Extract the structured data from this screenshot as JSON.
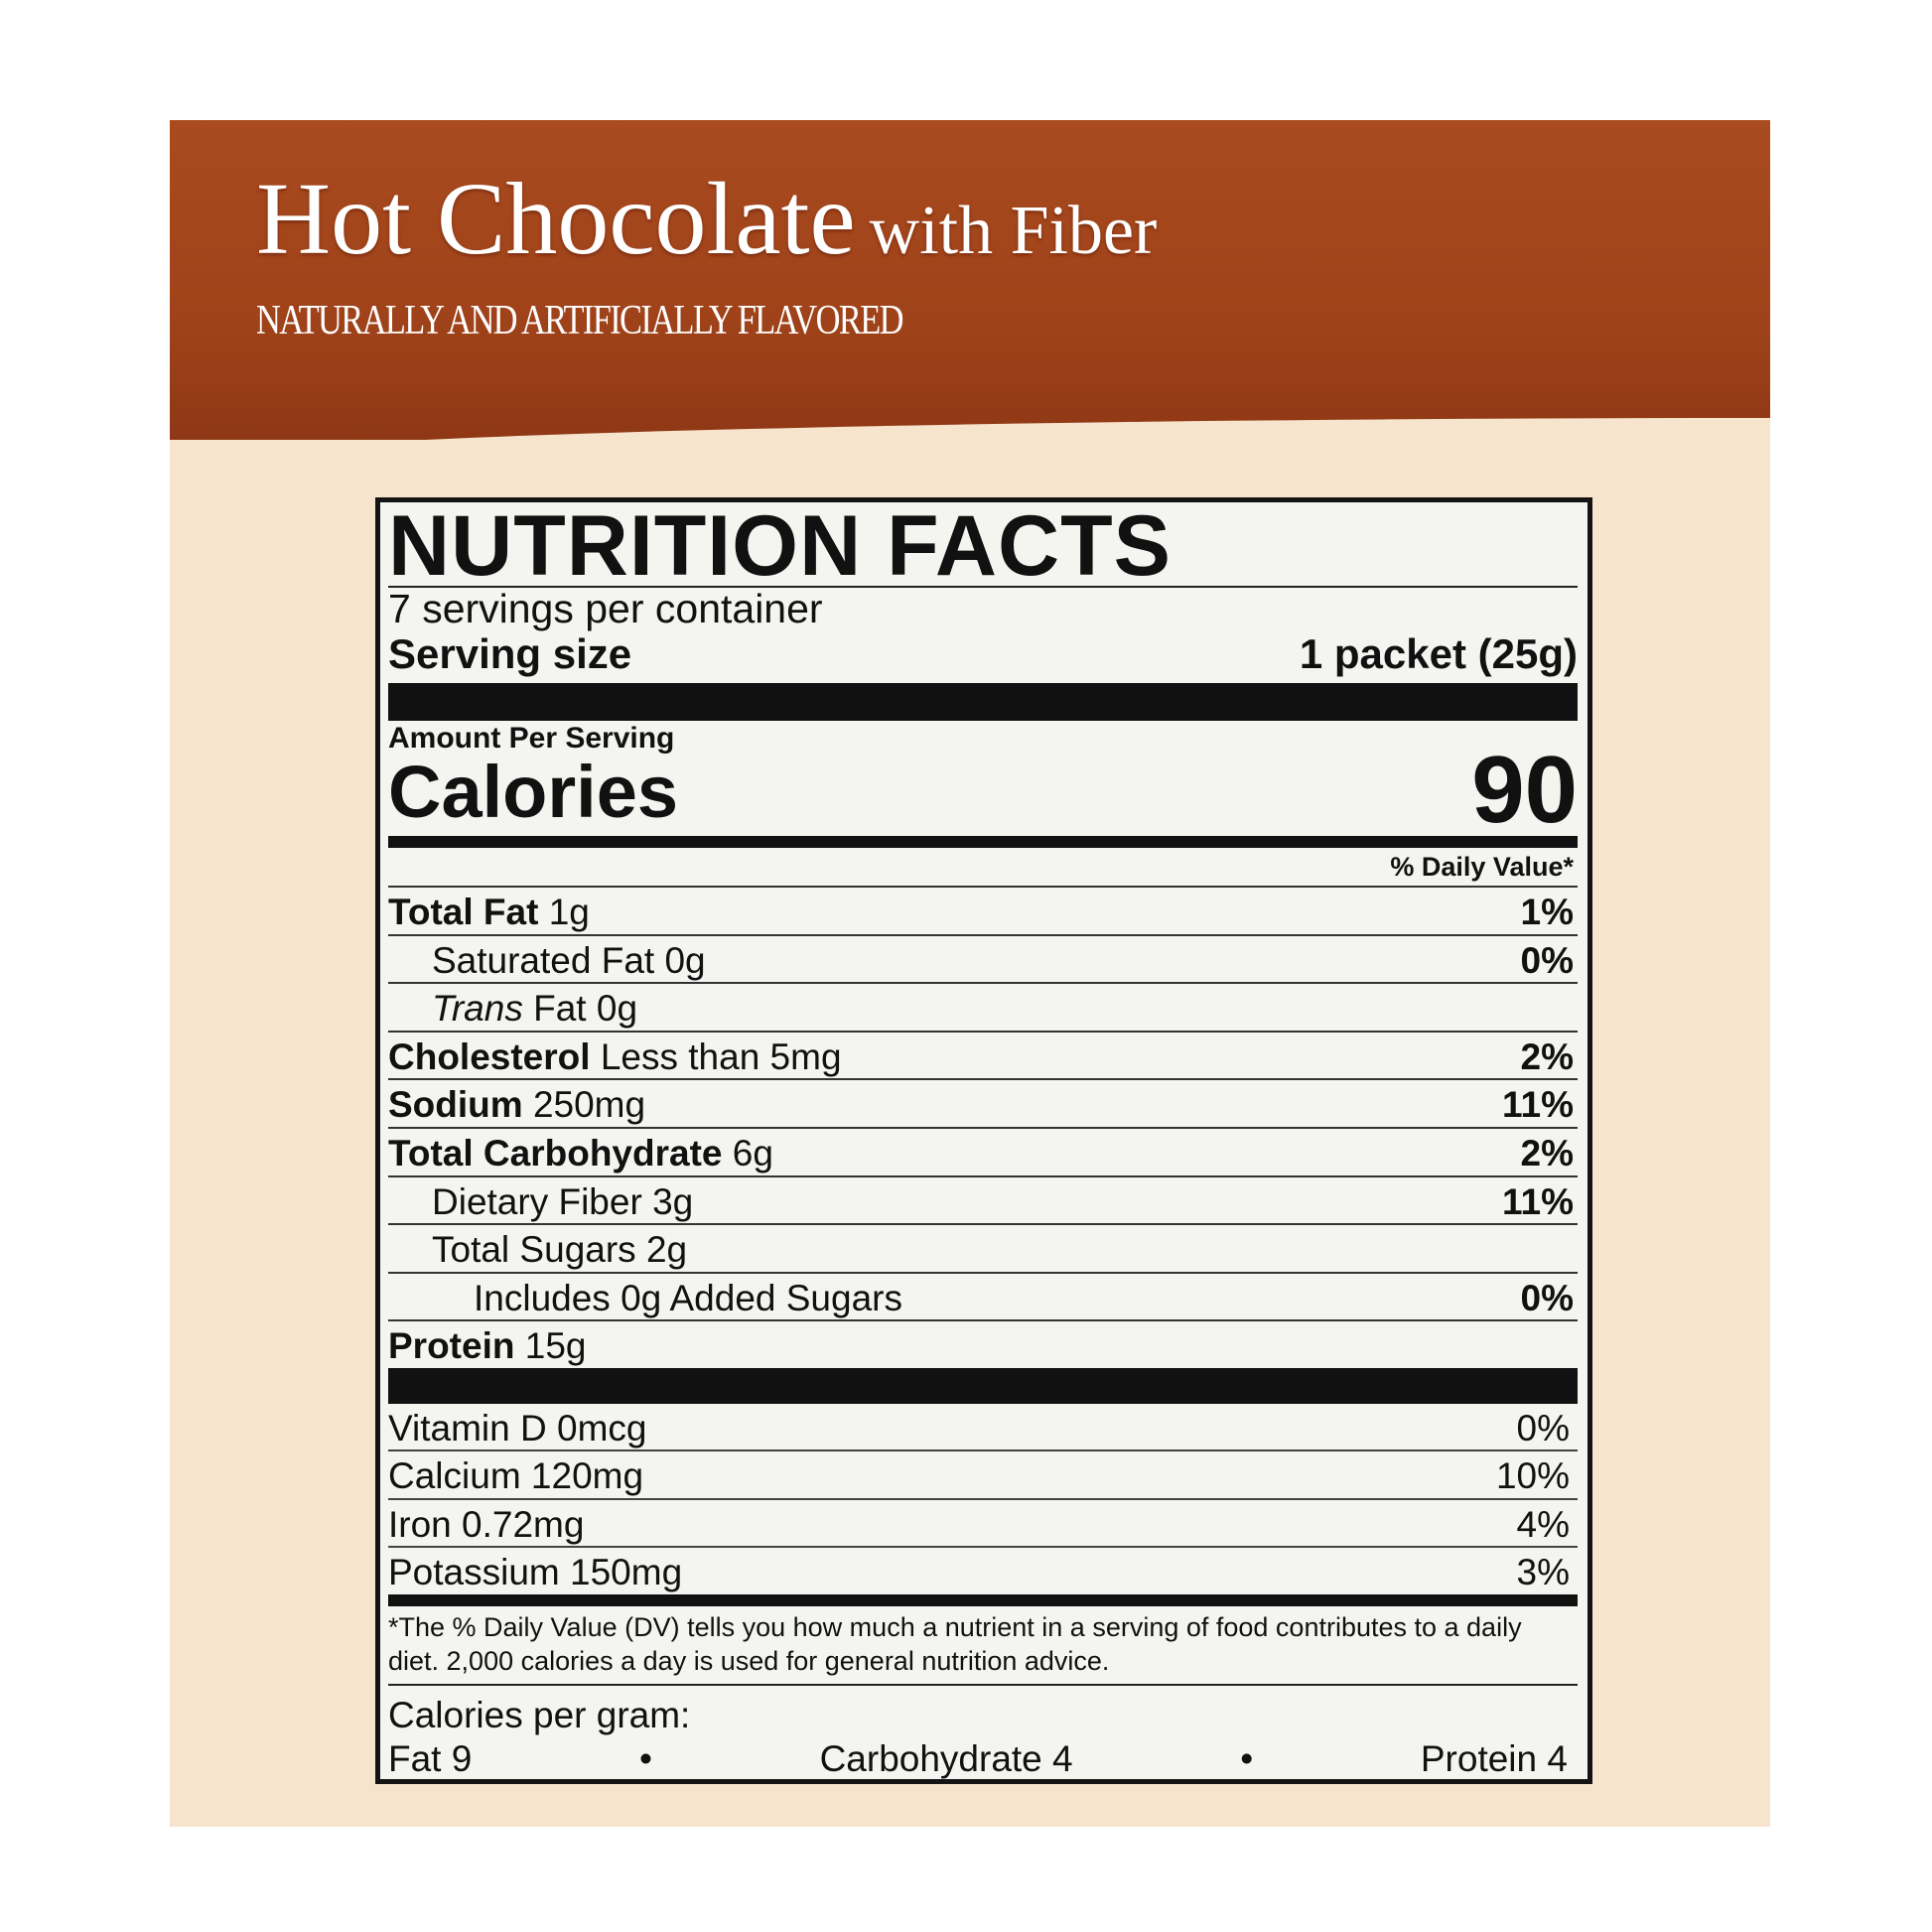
{
  "package": {
    "title_main": "Hot Chocolate",
    "title_sub": "with Fiber",
    "flavor_note": "NATURALLY AND ARTIFICIALLY FLAVORED",
    "colors": {
      "band": "#a0431a",
      "background": "#f6e4cd",
      "label": "#f4f4f1"
    }
  },
  "nutrition": {
    "title": "NUTRITION FACTS",
    "servings_per_container": "7 servings per container",
    "serving_size_label": "Serving size",
    "serving_size_value": "1 packet (25g)",
    "amount_per_serving": "Amount Per Serving",
    "calories_label": "Calories",
    "calories_value": "90",
    "dv_header": "% Daily Value*",
    "nutrients": [
      {
        "name": "Total Fat",
        "amount": "1g",
        "dv": "1%"
      },
      {
        "name": "Saturated Fat",
        "amount": "0g",
        "dv": "0%"
      },
      {
        "name": "Trans",
        "amount": "Fat 0g",
        "dv": ""
      },
      {
        "name": "Cholesterol",
        "amount": "Less than 5mg",
        "dv": "2%"
      },
      {
        "name": "Sodium",
        "amount": "250mg",
        "dv": "11%"
      },
      {
        "name": "Total Carbohydrate",
        "amount": "6g",
        "dv": "2%"
      },
      {
        "name": "Dietary Fiber",
        "amount": "3g",
        "dv": "11%"
      },
      {
        "name": "Total Sugars",
        "amount": "2g",
        "dv": ""
      },
      {
        "name": "Includes 0g Added Sugars",
        "amount": "",
        "dv": "0%"
      },
      {
        "name": "Protein",
        "amount": "15g",
        "dv": ""
      }
    ],
    "vitamins": [
      {
        "name": "Vitamin D 0mcg",
        "dv": "0%"
      },
      {
        "name": "Calcium 120mg",
        "dv": "10%"
      },
      {
        "name": "Iron 0.72mg",
        "dv": "4%"
      },
      {
        "name": "Potassium 150mg",
        "dv": "3%"
      }
    ],
    "footnote": "*The % Daily Value (DV) tells you how much a nutrient in a serving of food contributes to a daily diet. 2,000 calories a day is used for general nutrition advice.",
    "calories_per_gram_label": "Calories per gram:",
    "cpg_fat": "Fat 9",
    "cpg_carb": "Carbohydrate 4",
    "cpg_protein": "Protein 4",
    "bullet": "•"
  }
}
